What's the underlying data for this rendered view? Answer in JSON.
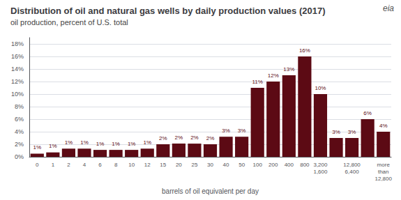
{
  "chart_data": {
    "type": "bar",
    "title": "Distribution of oil and natural gas wells by daily production values (2017)",
    "subtitle": "oil production, percent of U.S. total",
    "xlabel": "barrels of oil equivalent per day",
    "annotations": [
      "eia"
    ],
    "categories": [
      "0",
      "1",
      "2",
      "4",
      "6",
      "8",
      "10",
      "12",
      "15",
      "20",
      "25",
      "30",
      "40",
      "50",
      "100",
      "200",
      "400",
      "800",
      "3,200\n1,600",
      null,
      "12,800\n6,400",
      null,
      "more\nthan\n12,800"
    ],
    "values": [
      0.5,
      0.7,
      1.3,
      1.3,
      1.1,
      1.1,
      1.1,
      1.3,
      2.0,
      2.1,
      2.1,
      2.0,
      3.2,
      3.2,
      11,
      12,
      13,
      16,
      10,
      3,
      3,
      6,
      4
    ],
    "value_labels": [
      "1%",
      "1%",
      "1%",
      "1%",
      "1%",
      "1%",
      "1%",
      "1%",
      "2%",
      "2%",
      "2%",
      "2%",
      "3%",
      "3%",
      "11%",
      "12%",
      "13%",
      "16%",
      "10%",
      "3%",
      "3%",
      "6%",
      "4%"
    ],
    "data_labels": true,
    "color": "#5c0a14",
    "ylim": [
      0,
      19
    ],
    "yticks": [
      {
        "value": 0,
        "label": "0%"
      },
      {
        "value": 2,
        "label": "2%"
      },
      {
        "value": 4,
        "label": "4%"
      },
      {
        "value": 6,
        "label": "6%"
      },
      {
        "value": 8,
        "label": "8%"
      },
      {
        "value": 10,
        "label": "10%"
      },
      {
        "value": 12,
        "label": "12%"
      },
      {
        "value": 14,
        "label": "14%"
      },
      {
        "value": 16,
        "label": "16%"
      },
      {
        "value": 18,
        "label": "18%"
      }
    ],
    "grid": true
  }
}
